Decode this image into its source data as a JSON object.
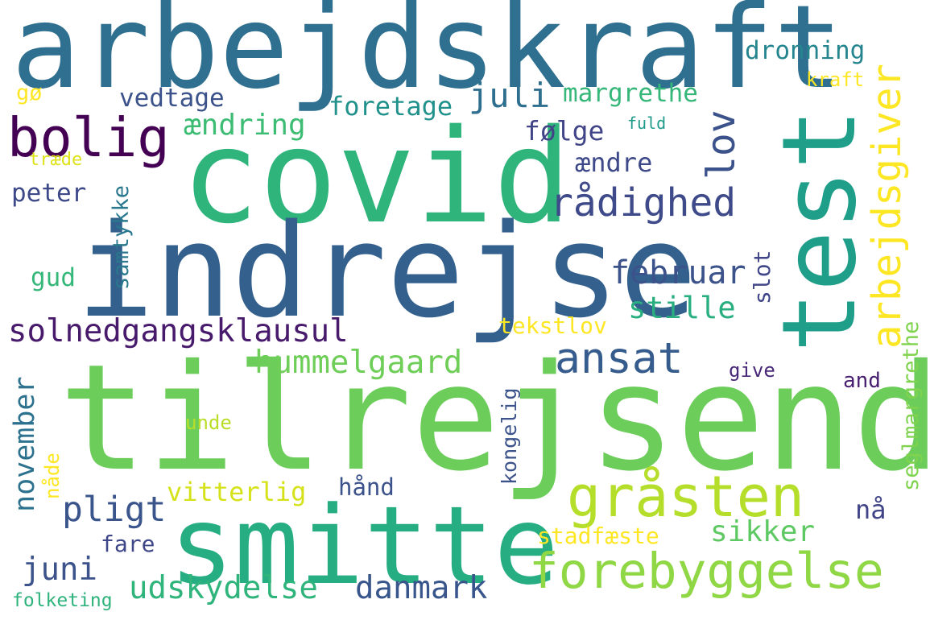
{
  "words": {
    "arbejdskraft": {
      "text": "arbejdskraft",
      "color": "#2f6f8f"
    },
    "covid": {
      "text": "covid",
      "color": "#2fb47c"
    },
    "indrejse": {
      "text": "indrejse",
      "color": "#34608d"
    },
    "tilrejsende": {
      "text": "tilrejsende",
      "color": "#6ccd5a"
    },
    "test": {
      "text": "test",
      "color": "#1f9e89"
    },
    "smitte": {
      "text": "smitte",
      "color": "#26ad81"
    },
    "bolig": {
      "text": "bolig",
      "color": "#440154"
    },
    "gråsten": {
      "text": "gråsten",
      "color": "#b5de2b"
    },
    "forebyggelse": {
      "text": "forebyggelse",
      "color": "#8fd744"
    },
    "arbejdsgiver": {
      "text": "arbejdsgiver",
      "color": "#fde725"
    },
    "lov": {
      "text": "lov",
      "color": "#3b528b"
    },
    "rådighed": {
      "text": "rådighed",
      "color": "#3e4a89"
    },
    "ansat": {
      "text": "ansat",
      "color": "#365c8d"
    },
    "solnedgangsklausul": {
      "text": "solnedgangsklausul",
      "color": "#481a6c"
    },
    "hummelgaard": {
      "text": "hummelgaard",
      "color": "#6ece58"
    },
    "februar": {
      "text": "februar",
      "color": "#3b528b"
    },
    "stille": {
      "text": "stille",
      "color": "#29af7f"
    },
    "juli": {
      "text": "juli",
      "color": "#2e6e8e"
    },
    "foretage": {
      "text": "foretage",
      "color": "#21918c"
    },
    "ændring": {
      "text": "ændring",
      "color": "#3dbc74"
    },
    "følge": {
      "text": "følge",
      "color": "#414487"
    },
    "ændre": {
      "text": "ændre",
      "color": "#3e4989"
    },
    "vedtage": {
      "text": "vedtage",
      "color": "#3b528b"
    },
    "margrethe": {
      "text": "margrethe",
      "color": "#35b779"
    },
    "dronning": {
      "text": "dronning",
      "color": "#25858e"
    },
    "kraft": {
      "text": "kraft",
      "color": "#fde725"
    },
    "fuld": {
      "text": "fuld",
      "color": "#1f9a8a"
    },
    "gø": {
      "text": "gø",
      "color": "#fde725"
    },
    "træde": {
      "text": "træde",
      "color": "#dde318"
    },
    "peter": {
      "text": "peter",
      "color": "#3e4989"
    },
    "samtykke": {
      "text": "samtykke",
      "color": "#2a788e"
    },
    "gud": {
      "text": "gud",
      "color": "#35b779"
    },
    "slot": {
      "text": "slot",
      "color": "#404688"
    },
    "tekstlov": {
      "text": "tekstlov",
      "color": "#fde725"
    },
    "give": {
      "text": "give",
      "color": "#482878"
    },
    "and": {
      "text": "and",
      "color": "#481f70"
    },
    "seglmargrethe": {
      "text": "seglmargrethe",
      "color": "#7fd34e"
    },
    "november": {
      "text": "november",
      "color": "#2c728e"
    },
    "nåde": {
      "text": "nåde",
      "color": "#fde725"
    },
    "unde": {
      "text": "unde",
      "color": "#b8de29"
    },
    "kongelig": {
      "text": "kongelig",
      "color": "#3b528b"
    },
    "pligt": {
      "text": "pligt",
      "color": "#3a548c"
    },
    "vitterlig": {
      "text": "vitterlig",
      "color": "#d5e21a"
    },
    "hånd": {
      "text": "hånd",
      "color": "#3b528b"
    },
    "nå": {
      "text": "nå",
      "color": "#414487"
    },
    "sikker": {
      "text": "sikker",
      "color": "#5ec962"
    },
    "stadfæste": {
      "text": "stadfæste",
      "color": "#fde725"
    },
    "fare": {
      "text": "fare",
      "color": "#3f4788"
    },
    "juni": {
      "text": "juni",
      "color": "#3b528b"
    },
    "udskydelse": {
      "text": "udskydelse",
      "color": "#2fb47c"
    },
    "danmark": {
      "text": "danmark",
      "color": "#39568c"
    },
    "folketing": {
      "text": "folketing",
      "color": "#2eb37c"
    }
  }
}
